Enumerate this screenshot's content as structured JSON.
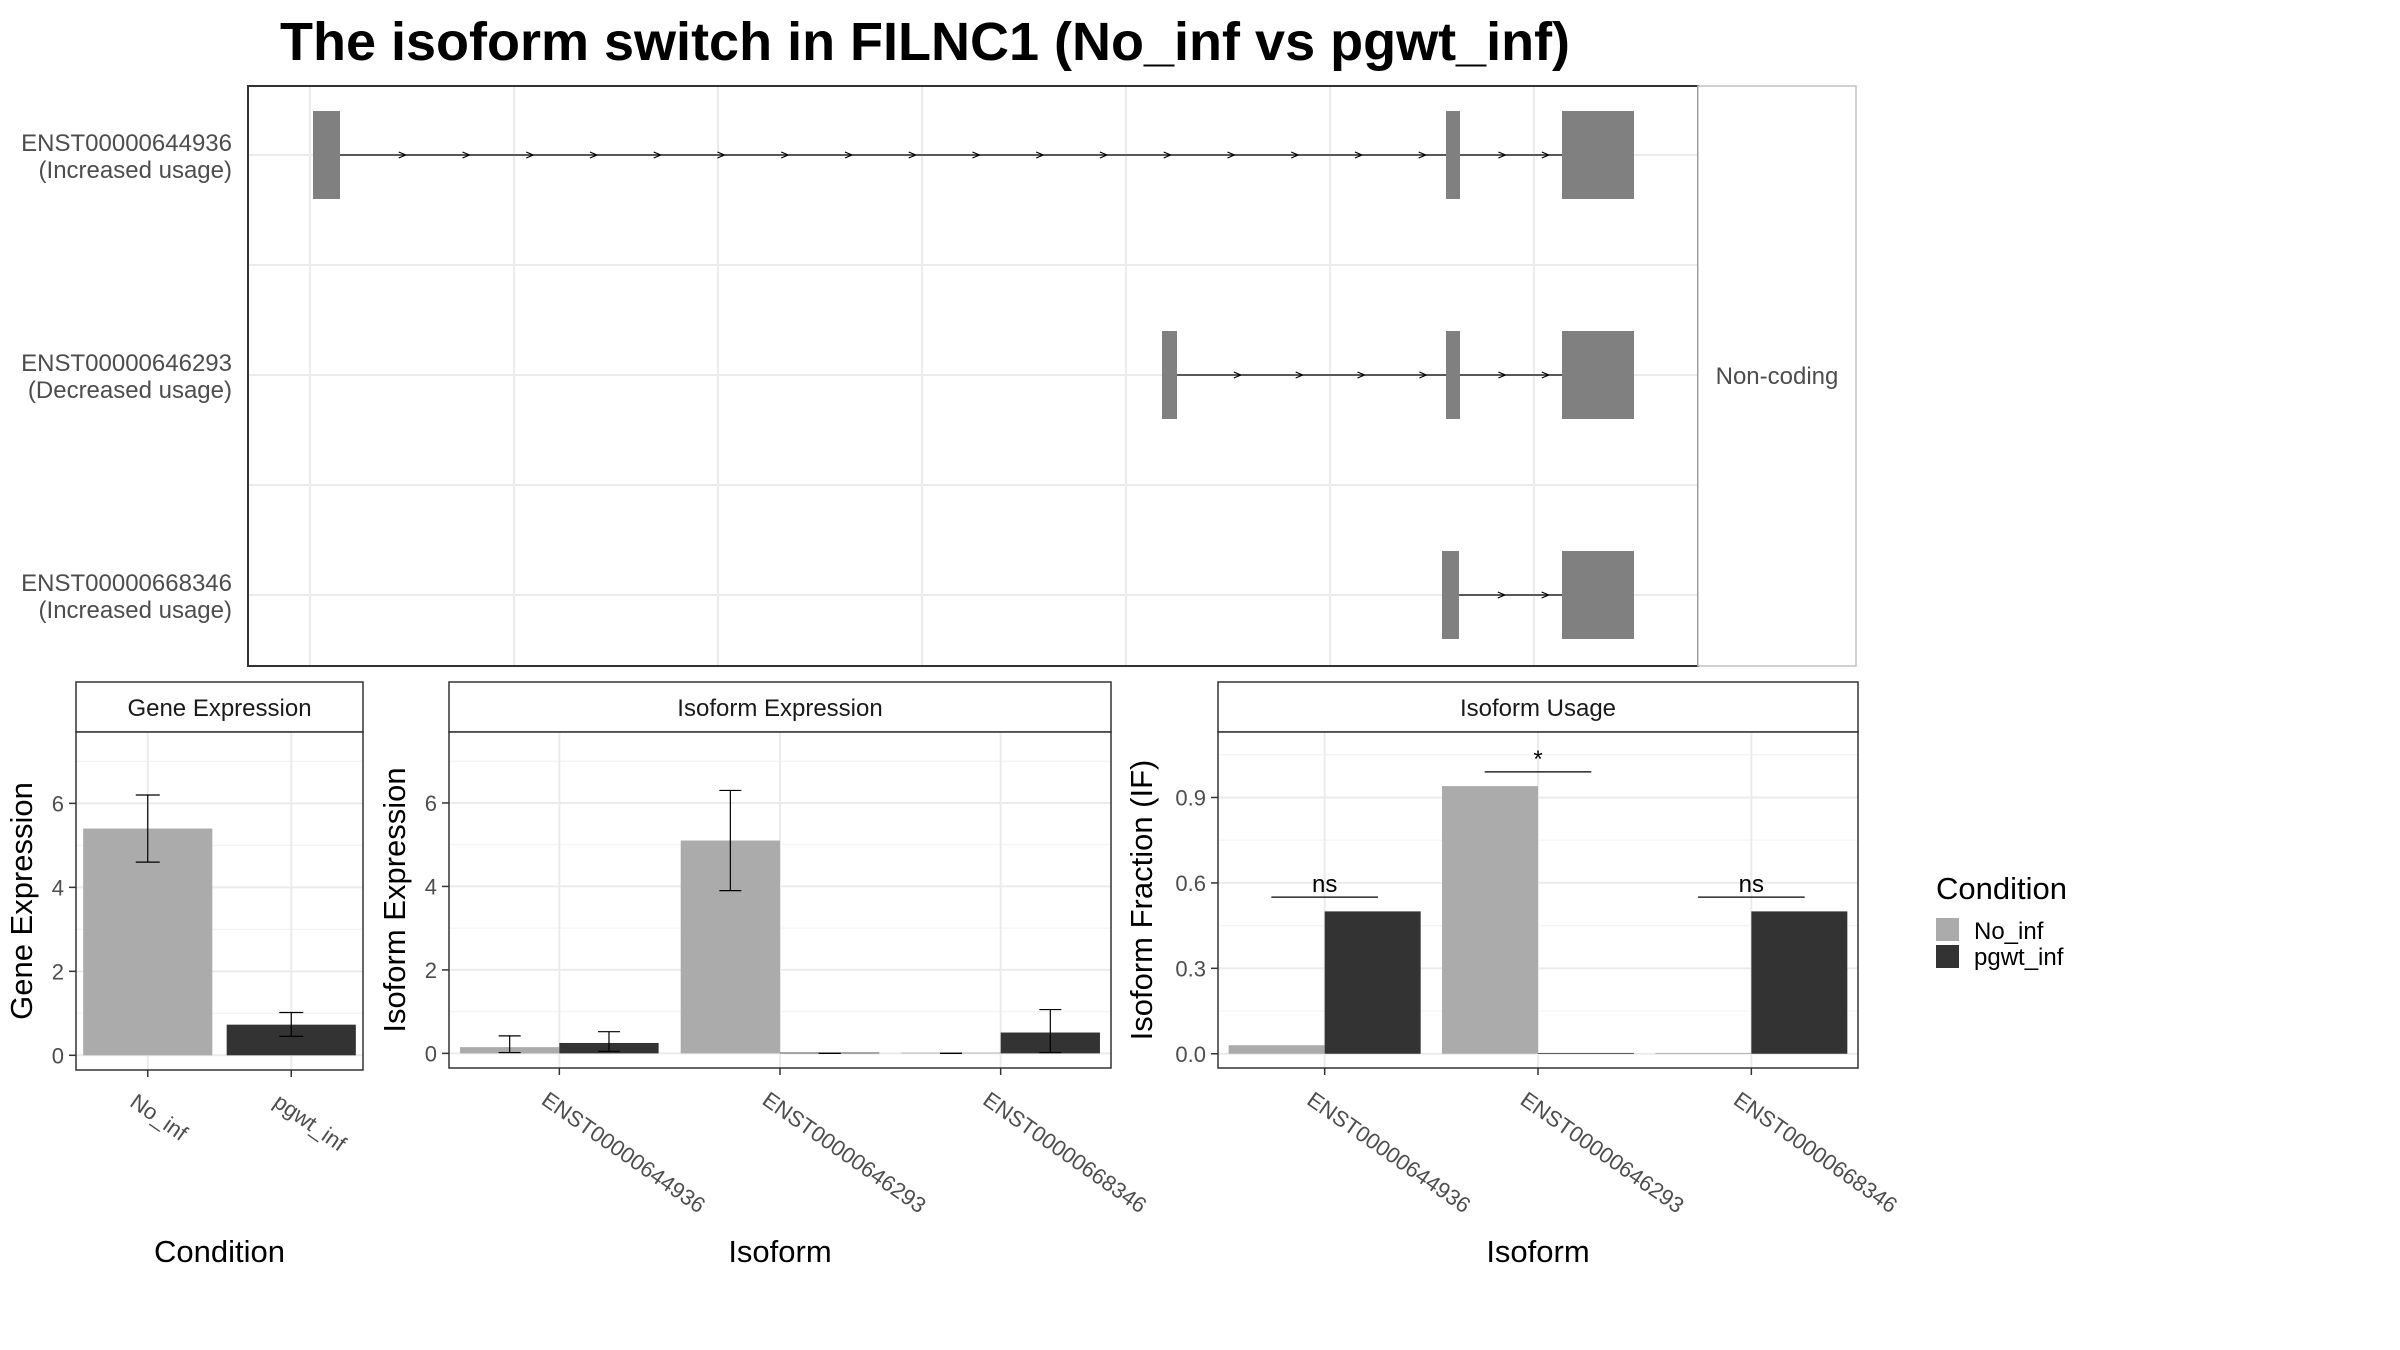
{
  "title": "The isoform switch in FILNC1 (No_inf vs pgwt_inf)",
  "colors": {
    "No_inf": "#ababab",
    "pgwt_inf": "#333333",
    "exon": "#808080",
    "grid": "#ebebeb"
  },
  "legend": {
    "title": "Condition",
    "items": [
      {
        "name": "No_inf",
        "color": "#ababab"
      },
      {
        "name": "pgwt_inf",
        "color": "#333333"
      }
    ]
  },
  "transcripts": {
    "coding_label": "Non-coding",
    "items": [
      {
        "id": "ENST00000644936",
        "usage": "(Increased usage)"
      },
      {
        "id": "ENST00000646293",
        "usage": "(Decreased usage)"
      },
      {
        "id": "ENST00000668346",
        "usage": "(Increased usage)"
      }
    ]
  },
  "chart_data": [
    {
      "type": "bar",
      "title": "Gene Expression",
      "xlabel": "Condition",
      "ylabel": "Gene Expression",
      "categories": [
        "No_inf",
        "pgwt_inf"
      ],
      "values": [
        5.4,
        0.73
      ],
      "error": [
        [
          4.6,
          6.2
        ],
        [
          0.45,
          1.02
        ]
      ],
      "ylim": [
        -0.35,
        7.7
      ],
      "yticks": [
        0,
        2,
        4,
        6
      ]
    },
    {
      "type": "bar",
      "title": "Isoform Expression",
      "xlabel": "Isoform",
      "ylabel": "Isoform Expression",
      "categories": [
        "ENST00000644936",
        "ENST00000646293",
        "ENST00000668346"
      ],
      "series": [
        {
          "name": "No_inf",
          "values": [
            0.15,
            5.1,
            0.0
          ],
          "error": [
            [
              0.02,
              0.42
            ],
            [
              3.9,
              6.3
            ],
            [
              0.0,
              0.0
            ]
          ]
        },
        {
          "name": "pgwt_inf",
          "values": [
            0.25,
            0.0,
            0.5
          ],
          "error": [
            [
              0.05,
              0.52
            ],
            [
              0.0,
              0.0
            ],
            [
              0.02,
              1.05
            ]
          ]
        }
      ],
      "ylim": [
        -0.35,
        7.7
      ],
      "yticks": [
        0,
        2,
        4,
        6
      ]
    },
    {
      "type": "bar",
      "title": "Isoform Usage",
      "xlabel": "Isoform",
      "ylabel": "Isoform Fraction (IF)",
      "categories": [
        "ENST00000644936",
        "ENST00000646293",
        "ENST00000668346"
      ],
      "series": [
        {
          "name": "No_inf",
          "values": [
            0.03,
            0.94,
            0.0
          ]
        },
        {
          "name": "pgwt_inf",
          "values": [
            0.5,
            0.0,
            0.5
          ]
        }
      ],
      "significance": [
        "ns",
        "*",
        "ns"
      ],
      "sig_y": [
        0.55,
        0.99,
        0.55
      ],
      "ylim": [
        -0.05,
        1.13
      ],
      "yticks": [
        0.0,
        0.3,
        0.6,
        0.9
      ],
      "ytick_labels": [
        "0.0",
        "0.3",
        "0.6",
        "0.9"
      ]
    }
  ]
}
